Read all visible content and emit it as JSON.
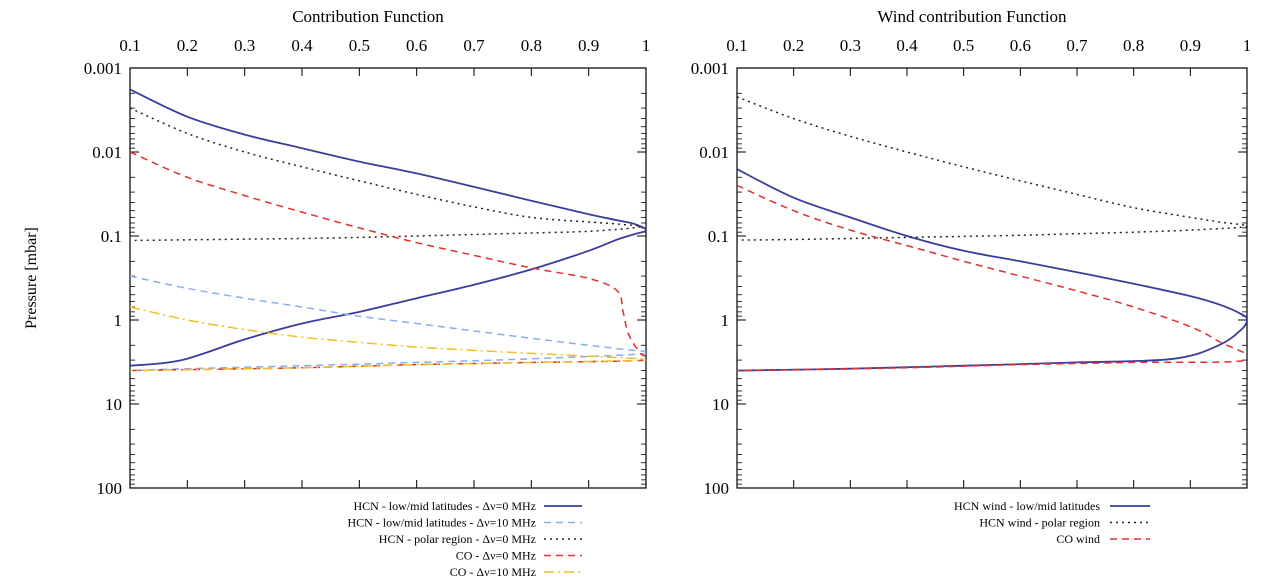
{
  "y_axis_label": "Pressure [mbar]",
  "chart_data": [
    {
      "type": "line",
      "title": "Contribution Function",
      "xlabel": "",
      "ylabel": "Pressure [mbar]",
      "xlim": [
        0.1,
        1
      ],
      "ylim": [
        0.001,
        100
      ],
      "y_scale": "log",
      "y_inverted": true,
      "x_axis_position": "top",
      "x_ticks": [
        "0.1",
        "0.2",
        "0.3",
        "0.4",
        "0.5",
        "0.6",
        "0.7",
        "0.8",
        "0.9",
        "1"
      ],
      "y_ticks": [
        "0.001",
        "0.01",
        "0.1",
        "1",
        "10",
        "100"
      ],
      "grid": false,
      "legend_placement": "bottom-right-below",
      "series": [
        {
          "name": "HCN - low/mid latitudes - Δν=0 MHz",
          "color": "#3a3d9c",
          "dash": "solid",
          "x": [
            0.1,
            0.2,
            0.3,
            0.4,
            0.5,
            0.6,
            0.7,
            0.8,
            0.9,
            0.95,
            0.98,
            1.0,
            0.98,
            0.95,
            0.9,
            0.8,
            0.7,
            0.6,
            0.5,
            0.4,
            0.3,
            0.19,
            0.1
          ],
          "y": [
            0.0018,
            0.0038,
            0.0062,
            0.009,
            0.013,
            0.018,
            0.026,
            0.038,
            0.055,
            0.065,
            0.072,
            0.085,
            0.095,
            0.11,
            0.15,
            0.25,
            0.38,
            0.55,
            0.8,
            1.1,
            1.7,
            3.0,
            3.5
          ]
        },
        {
          "name": "HCN - low/mid latitudes - Δν=10 MHz",
          "color": "#86aef0",
          "dash": "dashed",
          "x": [
            0.1,
            0.2,
            0.3,
            0.4,
            0.5,
            0.6,
            0.7,
            0.8,
            0.9,
            0.95,
            1.0,
            0.8,
            0.6,
            0.4,
            0.2,
            0.1
          ],
          "y": [
            0.3,
            0.42,
            0.55,
            0.7,
            0.9,
            1.1,
            1.35,
            1.65,
            2.0,
            2.2,
            2.5,
            2.9,
            3.2,
            3.5,
            3.8,
            4.0
          ]
        },
        {
          "name": "HCN - polar region - Δν=0 MHz",
          "color": "#222222",
          "dash": "dotted",
          "x": [
            0.1,
            0.2,
            0.3,
            0.4,
            0.5,
            0.6,
            0.7,
            0.8,
            0.9,
            0.95,
            0.99,
            0.9,
            0.8,
            0.7,
            0.6,
            0.5,
            0.4,
            0.3,
            0.2,
            0.1
          ],
          "y": [
            0.003,
            0.006,
            0.01,
            0.015,
            0.022,
            0.032,
            0.045,
            0.06,
            0.068,
            0.072,
            0.078,
            0.088,
            0.092,
            0.096,
            0.1,
            0.104,
            0.107,
            0.109,
            0.111,
            0.113
          ]
        },
        {
          "name": "CO - Δν=0 MHz",
          "color": "#e03030",
          "dash": "dashed",
          "x": [
            0.1,
            0.2,
            0.3,
            0.4,
            0.5,
            0.6,
            0.7,
            0.8,
            0.9,
            0.95,
            0.96,
            0.97,
            0.99,
            1.0,
            0.8,
            0.6,
            0.4,
            0.2,
            0.1
          ],
          "y": [
            0.01,
            0.02,
            0.033,
            0.052,
            0.08,
            0.12,
            0.17,
            0.24,
            0.32,
            0.45,
            0.8,
            1.5,
            2.5,
            3.0,
            3.2,
            3.4,
            3.7,
            3.9,
            4.0
          ]
        },
        {
          "name": "CO - Δν=10 MHz",
          "color": "#f0c020",
          "dash": "dashdot",
          "x": [
            0.1,
            0.2,
            0.3,
            0.4,
            0.5,
            0.6,
            0.7,
            0.8,
            0.9,
            0.95,
            1.0,
            0.8,
            0.6,
            0.4,
            0.2,
            0.1
          ],
          "y": [
            0.7,
            1.0,
            1.3,
            1.6,
            1.85,
            2.1,
            2.3,
            2.5,
            2.7,
            2.8,
            3.0,
            3.2,
            3.4,
            3.7,
            3.9,
            4.0
          ]
        }
      ]
    },
    {
      "type": "line",
      "title": "Wind contribution Function",
      "xlabel": "",
      "ylabel": "",
      "xlim": [
        0.1,
        1
      ],
      "ylim": [
        0.001,
        100
      ],
      "y_scale": "log",
      "y_inverted": true,
      "x_axis_position": "top",
      "x_ticks": [
        "0.1",
        "0.2",
        "0.3",
        "0.4",
        "0.5",
        "0.6",
        "0.7",
        "0.8",
        "0.9",
        "1"
      ],
      "y_ticks": [
        "0.001",
        "0.01",
        "0.1",
        "1",
        "10",
        "100"
      ],
      "grid": false,
      "legend_placement": "bottom-right-below",
      "series": [
        {
          "name": "HCN wind - low/mid latitudes",
          "color": "#3a3d9c",
          "dash": "solid",
          "x": [
            0.1,
            0.2,
            0.3,
            0.4,
            0.5,
            0.6,
            0.7,
            0.8,
            0.9,
            0.95,
            0.99,
            1.0,
            0.99,
            0.95,
            0.87,
            0.7,
            0.5,
            0.3,
            0.1
          ],
          "y": [
            0.016,
            0.035,
            0.06,
            0.1,
            0.15,
            0.2,
            0.27,
            0.37,
            0.52,
            0.65,
            0.85,
            1.0,
            1.3,
            2.0,
            2.9,
            3.2,
            3.5,
            3.8,
            4.0
          ]
        },
        {
          "name": "HCN wind - polar region",
          "color": "#222222",
          "dash": "dotted",
          "x": [
            0.1,
            0.2,
            0.3,
            0.4,
            0.5,
            0.6,
            0.7,
            0.8,
            0.9,
            0.95,
            1.0,
            0.9,
            0.8,
            0.7,
            0.6,
            0.5,
            0.4,
            0.3,
            0.2,
            0.1
          ],
          "y": [
            0.0022,
            0.004,
            0.0065,
            0.01,
            0.015,
            0.022,
            0.032,
            0.046,
            0.06,
            0.068,
            0.077,
            0.085,
            0.09,
            0.094,
            0.098,
            0.101,
            0.104,
            0.107,
            0.11,
            0.112
          ]
        },
        {
          "name": "CO wind",
          "color": "#e03030",
          "dash": "dashed",
          "x": [
            0.1,
            0.2,
            0.3,
            0.4,
            0.5,
            0.6,
            0.7,
            0.8,
            0.9,
            0.95,
            1.0,
            0.8,
            0.6,
            0.4,
            0.2,
            0.1
          ],
          "y": [
            0.025,
            0.05,
            0.085,
            0.13,
            0.2,
            0.3,
            0.45,
            0.7,
            1.2,
            1.8,
            3.0,
            3.2,
            3.4,
            3.7,
            3.9,
            4.0
          ]
        }
      ]
    }
  ]
}
